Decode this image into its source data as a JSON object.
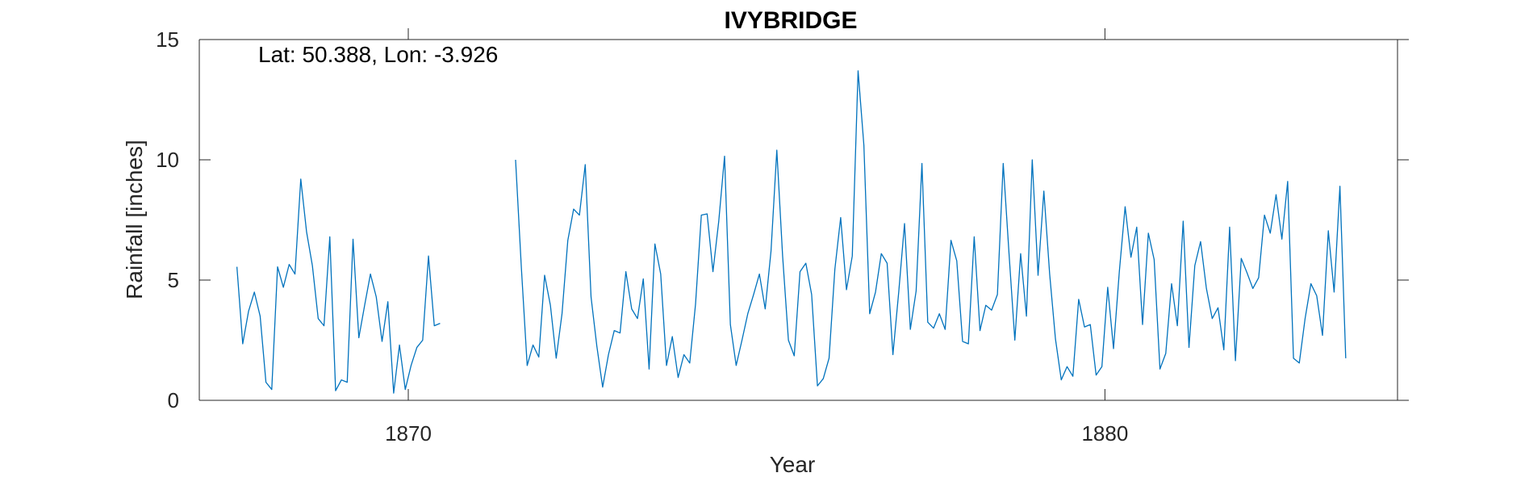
{
  "chart_data": {
    "type": "line",
    "title": "IVYBRIDGE",
    "annotation": "Lat: 50.388, Lon: -3.926",
    "xlabel": "Year",
    "ylabel": "Rainfall [inches]",
    "xlim": [
      1867,
      1884.2
    ],
    "ylim": [
      0,
      15
    ],
    "xticks": [
      1870,
      1880
    ],
    "xtick_labels": [
      "1870",
      "1880"
    ],
    "yticks": [
      0,
      5,
      10,
      15
    ],
    "ytick_labels": [
      "0",
      "5",
      "10",
      "15"
    ],
    "grid": false,
    "color": "#0072BD",
    "series": [
      {
        "segments": [
          {
            "start_year": 1867.54,
            "values": [
              5.55,
              2.35,
              3.7,
              4.5,
              3.5,
              0.75,
              0.45,
              5.55,
              4.7,
              5.65,
              5.25,
              9.2,
              7.0,
              5.6,
              3.4,
              3.1,
              6.8,
              0.4,
              0.85,
              0.75,
              6.7,
              2.6,
              3.95,
              5.25,
              4.3,
              2.45,
              4.1,
              0.3,
              2.3,
              0.45,
              1.45,
              2.2,
              2.5,
              6.0,
              3.1,
              3.2
            ]
          },
          {
            "start_year": 1871.54,
            "values": [
              10.0,
              5.5,
              1.45,
              2.3,
              1.8,
              5.2,
              3.95,
              1.75,
              3.6,
              6.65,
              7.95,
              7.7,
              9.8,
              4.3,
              2.25,
              0.55,
              1.9,
              2.9,
              2.8,
              5.35,
              3.8,
              3.4,
              5.05,
              1.3,
              6.5,
              5.25,
              1.45,
              2.65,
              0.95,
              1.9,
              1.55,
              4.0,
              7.7,
              7.75,
              5.35,
              7.45,
              10.15,
              3.15,
              1.45,
              2.5,
              3.6,
              4.4,
              5.25,
              3.8,
              6.2,
              10.4,
              6.0,
              2.5,
              1.85,
              5.35,
              5.7,
              4.4,
              0.6,
              0.9,
              1.75,
              5.45,
              7.6,
              4.6,
              6.0,
              13.7,
              10.6,
              3.6,
              4.5,
              6.1,
              5.7,
              1.9,
              4.5,
              7.35,
              2.95,
              4.55,
              9.85,
              3.25,
              3.0,
              3.6,
              2.95,
              6.65,
              5.8,
              2.45,
              2.35,
              6.8,
              2.9,
              3.95,
              3.75,
              4.4,
              9.85,
              6.1,
              2.5,
              6.1,
              3.5,
              10.0,
              5.2,
              8.7,
              5.25,
              2.55,
              0.85,
              1.4,
              1.0,
              4.2,
              3.05,
              3.15,
              1.05,
              1.4,
              4.7,
              2.15,
              5.35,
              8.05,
              5.95,
              7.2,
              3.15,
              6.95,
              5.85,
              1.3,
              1.95,
              4.85,
              3.1,
              7.45,
              2.2,
              5.6,
              6.6,
              4.65,
              3.4,
              3.85,
              2.1,
              7.2,
              1.65,
              5.9,
              5.3,
              4.65,
              5.1,
              7.7,
              6.95,
              8.55,
              6.7,
              9.1,
              1.75,
              1.55,
              3.4,
              4.85,
              4.35,
              2.7,
              7.05,
              4.5,
              8.9,
              1.75
            ]
          }
        ]
      }
    ]
  }
}
